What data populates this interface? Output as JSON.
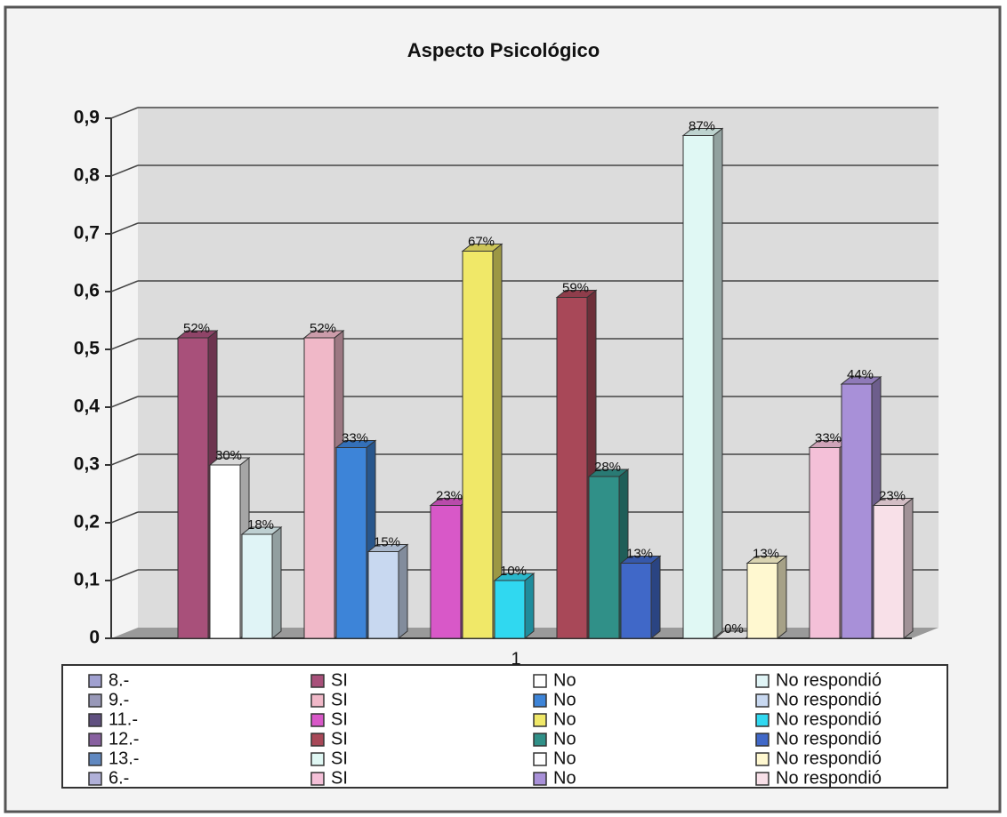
{
  "chart_data": {
    "type": "bar3d",
    "title": "Aspecto Psicológico",
    "categories": [
      "1"
    ],
    "ylim": [
      0,
      0.9
    ],
    "yticks": [
      0,
      {
        "value": 0.1,
        "label": "0,1"
      },
      {
        "value": 0.2,
        "label": "0,2"
      },
      {
        "value": 0.3,
        "label": "0,3"
      },
      {
        "value": 0.4,
        "label": "0,4"
      },
      {
        "value": 0.5,
        "label": "0,5"
      },
      {
        "value": 0.6,
        "label": "0,6"
      },
      {
        "value": 0.7,
        "label": "0,7"
      },
      {
        "value": 0.8,
        "label": "0,8"
      },
      {
        "value": 0.9,
        "label": "0,9"
      }
    ],
    "grid": true,
    "groups": [
      {
        "name": "8.-",
        "color": "#a0a0d0"
      },
      {
        "name": "9.-",
        "color": "#9898b8"
      },
      {
        "name": "11.-",
        "color": "#605080"
      },
      {
        "name": "12.-",
        "color": "#8860a0"
      },
      {
        "name": "13.-",
        "color": "#6088c0"
      },
      {
        "name": "6.-",
        "color": "#b0b0d8"
      }
    ],
    "series": [
      {
        "name": "SI",
        "color": "#a8507a",
        "values": [
          0.52
        ],
        "value_labels": [
          "52%"
        ]
      },
      {
        "name": "No",
        "color": "#ffffff",
        "values": [
          0.3
        ],
        "value_labels": [
          "30%"
        ]
      },
      {
        "name": "No respondió",
        "color": "#e0f4f6",
        "values": [
          0.18
        ],
        "value_labels": [
          "18%"
        ]
      },
      {
        "name": "SI",
        "color": "#f0b8c8",
        "values": [
          0.52
        ],
        "value_labels": [
          "52%"
        ]
      },
      {
        "name": "No",
        "color": "#3d84d8",
        "values": [
          0.33
        ],
        "value_labels": [
          "33%"
        ]
      },
      {
        "name": "No respondió",
        "color": "#c8d8f0",
        "values": [
          0.15
        ],
        "value_labels": [
          "15%"
        ]
      },
      {
        "name": "SI",
        "color": "#d858c8",
        "values": [
          0.23
        ],
        "value_labels": [
          "23%"
        ]
      },
      {
        "name": "No",
        "color": "#f0e868",
        "values": [
          0.67
        ],
        "value_labels": [
          "67%"
        ]
      },
      {
        "name": "No respondió",
        "color": "#30d8f0",
        "values": [
          0.1
        ],
        "value_labels": [
          "10%"
        ]
      },
      {
        "name": "SI",
        "color": "#a84858",
        "values": [
          0.59
        ],
        "value_labels": [
          "59%"
        ]
      },
      {
        "name": "No",
        "color": "#309088",
        "values": [
          0.28
        ],
        "value_labels": [
          "28%"
        ]
      },
      {
        "name": "No respondió",
        "color": "#4068c8",
        "values": [
          0.13
        ],
        "value_labels": [
          "13%"
        ]
      },
      {
        "name": "SI",
        "color": "#e0f8f4",
        "values": [
          0.87
        ],
        "value_labels": [
          "87%"
        ]
      },
      {
        "name": "No",
        "color": "#ffffff",
        "values": [
          0
        ],
        "value_labels": [
          "0%"
        ]
      },
      {
        "name": "No respondió",
        "color": "#fff8d0",
        "values": [
          0.13
        ],
        "value_labels": [
          "13%"
        ]
      },
      {
        "name": "SI",
        "color": "#f4c0d8",
        "values": [
          0.33
        ],
        "value_labels": [
          "33%"
        ]
      },
      {
        "name": "No",
        "color": "#a890d8",
        "values": [
          0.44
        ],
        "value_labels": [
          "44%"
        ]
      },
      {
        "name": "No respondió",
        "color": "#f8e0e8",
        "values": [
          0.23
        ],
        "value_labels": [
          "23%"
        ]
      }
    ]
  }
}
